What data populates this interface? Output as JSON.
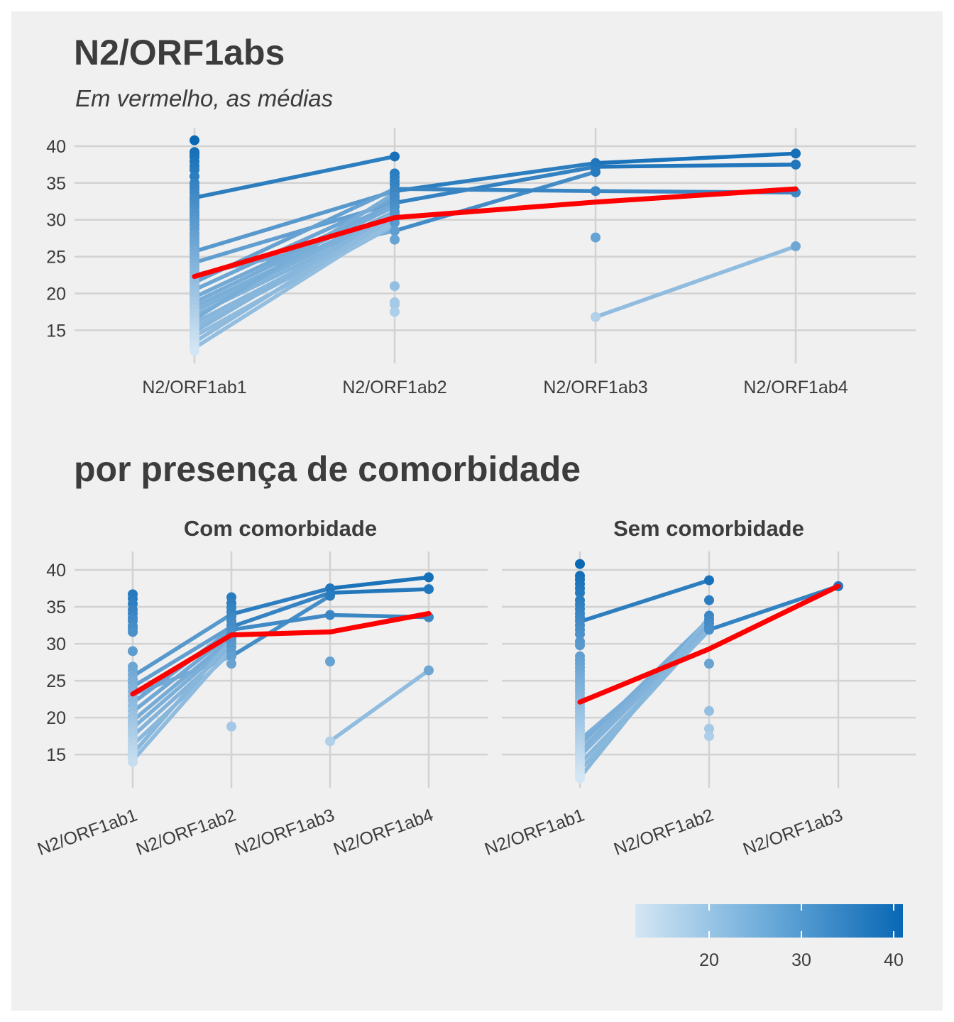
{
  "title": "N2/ORF1abs",
  "subtitle": "Em vermelho, as médias",
  "title2": "por presença de comorbidade",
  "colors": {
    "background": "#f0f0f0",
    "grid": "#d2d2d2",
    "mean": "#ff0000",
    "low": "#d4e6f4",
    "high": "#0867b4"
  },
  "legend": {
    "range": [
      12,
      41
    ],
    "ticks": [
      20,
      30,
      40
    ],
    "position": "bottom-right"
  },
  "chart_data": [
    {
      "type": "line",
      "title": "N2/ORF1abs",
      "subtitle": "Em vermelho, as médias",
      "categories": [
        "N2/ORF1ab1",
        "N2/ORF1ab2",
        "N2/ORF1ab3",
        "N2/ORF1ab4"
      ],
      "ylim": [
        10.5,
        42.5
      ],
      "yticks": [
        15,
        20,
        25,
        30,
        35,
        40
      ],
      "grid": true,
      "points": [
        [
          40.8,
          39.2,
          38.9,
          38.5,
          37.9,
          37.3,
          36.8,
          35.9,
          35,
          34.5,
          34.1,
          33.6,
          33.1,
          32.8,
          32.4,
          32,
          31.6,
          31.1,
          30.7,
          30.3,
          29.8,
          29.3,
          28.8,
          28.2,
          27.7,
          27.2,
          26.8,
          26.3,
          25.8,
          25.3,
          24.8,
          24.3,
          23.8,
          23.3,
          22.8,
          22.3,
          21.8,
          21.3,
          20.8,
          20.3,
          19.8,
          19.3,
          18.8,
          18.3,
          17.8,
          17.3,
          16.8,
          16.3,
          15.8,
          15.3,
          14.8,
          14.3,
          13.8,
          13.3,
          12.8,
          12.2
        ],
        [
          38.6,
          36.3,
          35.8,
          35.3,
          34.8,
          34.2,
          33.7,
          33.2,
          32.9,
          32.3,
          31.8,
          31.1,
          30.8,
          30.2,
          29.6,
          28.5,
          27.3,
          21,
          18.8,
          18.5,
          17.5
        ],
        [
          37.7,
          37.2,
          36.5,
          33.9,
          27.6,
          16.8
        ],
        [
          39,
          37.5,
          33.7,
          26.4
        ]
      ],
      "series": [
        {
          "values": [
            33,
            38.6,
            null,
            null
          ]
        },
        {
          "values": [
            25.7,
            33.9,
            37.7,
            39
          ]
        },
        {
          "values": [
            24.2,
            32.3,
            37.2,
            37.5
          ]
        },
        {
          "values": [
            22.5,
            28.5,
            36.5,
            null
          ]
        },
        {
          "values": [
            21.5,
            34.2,
            33.9,
            33.7
          ]
        },
        {
          "values": [
            20.5,
            32.9,
            null,
            null
          ]
        },
        {
          "values": [
            19.5,
            32.2,
            null,
            null
          ]
        },
        {
          "values": [
            18.8,
            31.8,
            null,
            null
          ]
        },
        {
          "values": [
            18.2,
            31.1,
            null,
            null
          ]
        },
        {
          "values": [
            17.6,
            30.8,
            null,
            null
          ]
        },
        {
          "values": [
            17,
            30.2,
            null,
            null
          ]
        },
        {
          "values": [
            16.5,
            33.6,
            null,
            null
          ]
        },
        {
          "values": [
            16,
            30,
            null,
            null
          ]
        },
        {
          "values": [
            15.4,
            29.6,
            null,
            null
          ]
        },
        {
          "values": [
            14.8,
            31,
            null,
            null
          ]
        },
        {
          "values": [
            14.2,
            29.3,
            null,
            null
          ]
        },
        {
          "values": [
            13.4,
            30.5,
            null,
            null
          ]
        },
        {
          "values": [
            12.6,
            29.8,
            null,
            null
          ]
        },
        {
          "values": [
            null,
            null,
            16.8,
            26.4
          ]
        }
      ],
      "mean": [
        22.3,
        30.3,
        32.4,
        34.2
      ]
    },
    {
      "type": "line",
      "facet": "Com comorbidade",
      "categories": [
        "N2/ORF1ab1",
        "N2/ORF1ab2",
        "N2/ORF1ab3",
        "N2/ORF1ab4"
      ],
      "ylim": [
        10.5,
        42.5
      ],
      "yticks": [
        15,
        20,
        25,
        30,
        35,
        40
      ],
      "grid": true,
      "points": [
        [
          36.7,
          36.1,
          35.4,
          34.6,
          34.1,
          33.5,
          33.1,
          32.4,
          32,
          31.6,
          29,
          26.9,
          26.4,
          25.8,
          25.2,
          24.7,
          24.1,
          23.5,
          22.9,
          22.3,
          21.6,
          20.9,
          20.2,
          19.6,
          19.1,
          18.6,
          18,
          17.5,
          16.9,
          16.3,
          15.7,
          15.1,
          14.6,
          14
        ],
        [
          36.3,
          35.5,
          34.9,
          34.3,
          33.7,
          33.1,
          32.5,
          31.9,
          31.3,
          30.7,
          30.2,
          29.6,
          28.9,
          28.3,
          27.3,
          18.8
        ],
        [
          37.5,
          36.5,
          33.9,
          27.6,
          16.8
        ],
        [
          39,
          37.4,
          33.6,
          26.4
        ]
      ],
      "series": [
        {
          "values": [
            25.6,
            34,
            37.5,
            39
          ]
        },
        {
          "values": [
            24.2,
            32.3,
            36.9,
            37.4
          ]
        },
        {
          "values": [
            23.1,
            28.3,
            36.5,
            null
          ]
        },
        {
          "values": [
            22,
            31.9,
            33.9,
            33.6
          ]
        },
        {
          "values": [
            20.8,
            31.3,
            null,
            null
          ]
        },
        {
          "values": [
            19.6,
            30.7,
            null,
            null
          ]
        },
        {
          "values": [
            18.6,
            30.2,
            null,
            null
          ]
        },
        {
          "values": [
            17.5,
            29.6,
            null,
            null
          ]
        },
        {
          "values": [
            16.3,
            28.9,
            null,
            null
          ]
        },
        {
          "values": [
            15.1,
            30.5,
            null,
            null
          ]
        },
        {
          "values": [
            14.2,
            29.4,
            null,
            null
          ]
        },
        {
          "values": [
            null,
            null,
            16.8,
            26.4
          ]
        }
      ],
      "mean": [
        23.2,
        31.2,
        31.6,
        34.1
      ]
    },
    {
      "type": "line",
      "facet": "Sem comorbidade",
      "categories": [
        "N2/ORF1ab1",
        "N2/ORF1ab2",
        "N2/ORF1ab3"
      ],
      "ylim": [
        10.5,
        42.5
      ],
      "yticks": [
        15,
        20,
        25,
        30,
        35,
        40
      ],
      "grid": true,
      "points": [
        [
          40.8,
          39.2,
          38.7,
          38.1,
          37.5,
          36.9,
          35.9,
          35.3,
          34.7,
          34.1,
          33.6,
          33.1,
          32.5,
          31.9,
          31.3,
          30.3,
          29.8,
          28.3,
          27.8,
          27.3,
          26.8,
          26.3,
          25.8,
          25.3,
          24.8,
          24.3,
          23.8,
          23.3,
          22.8,
          22.3,
          21.8,
          21.3,
          20.8,
          20.3,
          19.8,
          19.3,
          18.8,
          18.3,
          17.8,
          17.3,
          16.8,
          16.3,
          15.8,
          15.3,
          14.8,
          14.3,
          13.8,
          13.3,
          12.8,
          12.3,
          11.8
        ],
        [
          38.6,
          35.9,
          33.8,
          33.3,
          32.8,
          32.3,
          31.9,
          27.3,
          20.9,
          18.5,
          17.5
        ],
        [
          37.8
        ]
      ],
      "series": [
        {
          "values": [
            33,
            38.6,
            null
          ]
        },
        {
          "values": [
            17,
            31.9,
            37.8
          ]
        },
        {
          "values": [
            16.3,
            33.3,
            null
          ]
        },
        {
          "values": [
            15.5,
            32.8,
            null
          ]
        },
        {
          "values": [
            14.8,
            32.3,
            null
          ]
        },
        {
          "values": [
            13.8,
            31.8,
            null
          ]
        },
        {
          "values": [
            12.9,
            32.1,
            null
          ]
        },
        {
          "values": [
            11.9,
            33.6,
            null
          ]
        }
      ],
      "mean": [
        22.1,
        29.3,
        37.8
      ]
    }
  ]
}
